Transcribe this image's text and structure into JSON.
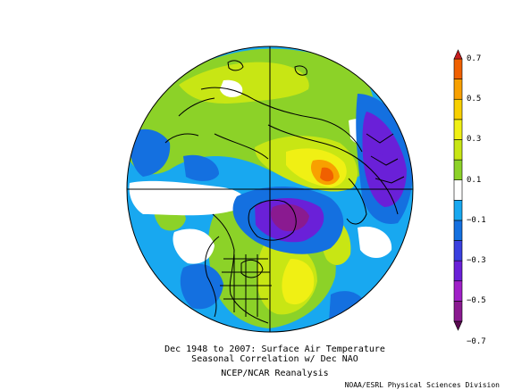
{
  "figure": {
    "caption_line1": "Dec 1948 to 2007: Surface Air Temperature",
    "caption_line2": "Seasonal Correlation w/ Dec NAO",
    "caption_line3": "NCEP/NCAR Reanalysis",
    "credit": "NOAA/ESRL Physical Sciences Division"
  },
  "colorbar": {
    "tick_labels": [
      "0.7",
      "0.5",
      "0.3",
      "0.1",
      "−0.1",
      "−0.3",
      "−0.5",
      "−0.7"
    ],
    "bins": [
      {
        "range": "< -0.7",
        "color": "#5a0a50"
      },
      {
        "range": "-0.7 to -0.6",
        "color": "#8a1a90"
      },
      {
        "range": "-0.6 to -0.5",
        "color": "#a020c8"
      },
      {
        "range": "-0.5 to -0.4",
        "color": "#6a20d8"
      },
      {
        "range": "-0.4 to -0.3",
        "color": "#3a40e0"
      },
      {
        "range": "-0.3 to -0.2",
        "color": "#1470e0"
      },
      {
        "range": "-0.2 to -0.1",
        "color": "#18a8f0"
      },
      {
        "range": "-0.1 to 0.1",
        "color": "#ffffff"
      },
      {
        "range": "0.1 to 0.2",
        "color": "#8cd228"
      },
      {
        "range": "0.2 to 0.3",
        "color": "#c8e614"
      },
      {
        "range": "0.3 to 0.4",
        "color": "#f0f014"
      },
      {
        "range": "0.4 to 0.5",
        "color": "#f8d000"
      },
      {
        "range": "0.5 to 0.6",
        "color": "#f8a000"
      },
      {
        "range": "0.6 to 0.7",
        "color": "#f06000"
      },
      {
        "range": "> 0.7",
        "color": "#c81e1e"
      }
    ]
  },
  "map": {
    "projection": "north-polar-stereographic",
    "field_colors": {
      "strong_neg": "#8a1a90",
      "neg_purple": "#6a20d8",
      "neg_blue": "#1470e0",
      "neg_light": "#18a8f0",
      "neutral": "#ffffff",
      "pos_green": "#8cd228",
      "pos_lime": "#c8e614",
      "pos_yellow": "#f0f014",
      "pos_orange": "#f8a000",
      "pos_red": "#f06000"
    }
  }
}
